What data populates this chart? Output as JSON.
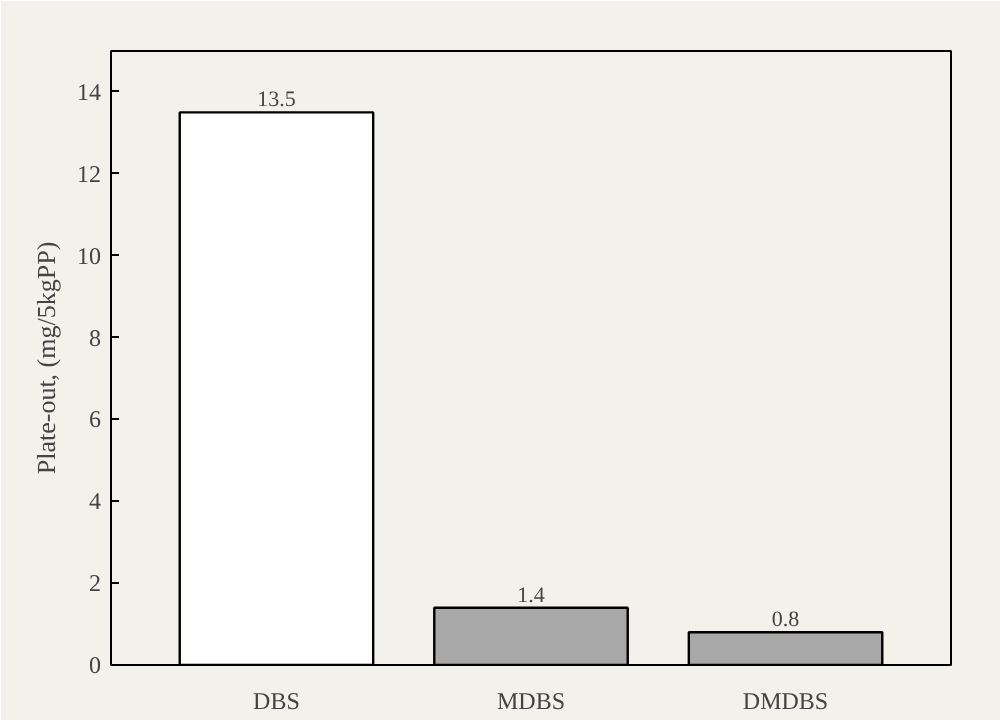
{
  "chart_data": {
    "type": "bar",
    "ylabel": "Plate-out, (mg/5kgPP)",
    "categories": [
      "DBS",
      "MDBS",
      "DMDBS"
    ],
    "values": [
      13.5,
      1.4,
      0.8
    ],
    "colors": [
      "#ffffff",
      "#a8a8a8",
      "#a8a8a8"
    ],
    "ylim": [
      0,
      15
    ],
    "yticks": [
      0,
      2,
      4,
      6,
      8,
      10,
      12,
      14
    ],
    "data_labels": true,
    "grid": false
  }
}
